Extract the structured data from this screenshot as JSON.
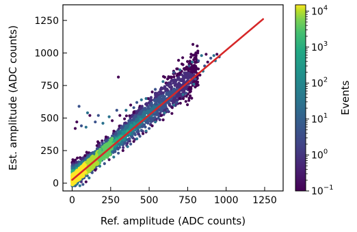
{
  "chart_data": {
    "type": "scatter",
    "title": "",
    "xlabel": "Ref. amplitude (ADC counts)",
    "ylabel": "Est. amplitude (ADC counts)",
    "xlim": [
      -60,
      1370
    ],
    "ylim": [
      -60,
      1370
    ],
    "xticks": [
      0,
      250,
      500,
      750,
      1000,
      1250
    ],
    "yticks": [
      0,
      250,
      500,
      750,
      1000,
      1250
    ],
    "grid": false,
    "colormap": "viridis",
    "colorbar": {
      "label": "Events",
      "scale": "log",
      "range": [
        0.1,
        15000
      ],
      "ticks": [
        {
          "value": 0.1,
          "base": "10",
          "exp": "−1"
        },
        {
          "value": 1,
          "base": "10",
          "exp": "0"
        },
        {
          "value": 10,
          "base": "10",
          "exp": "1"
        },
        {
          "value": 100,
          "base": "10",
          "exp": "2"
        },
        {
          "value": 1000,
          "base": "10",
          "exp": "3"
        },
        {
          "value": 10000,
          "base": "10",
          "exp": "4"
        }
      ]
    },
    "fit_line": {
      "x": [
        0,
        1240
      ],
      "y": [
        25,
        1260
      ],
      "color": "#d62728"
    },
    "outliers": [
      [
        300,
        815
      ],
      [
        45,
        590
      ],
      [
        100,
        540
      ],
      [
        115,
        520
      ],
      [
        170,
        520
      ],
      [
        240,
        510
      ],
      [
        30,
        470
      ],
      [
        150,
        470
      ],
      [
        90,
        430
      ],
      [
        20,
        420
      ],
      [
        60,
        440
      ],
      [
        200,
        460
      ],
      [
        260,
        480
      ],
      [
        290,
        560
      ],
      [
        350,
        560
      ],
      [
        380,
        600
      ],
      [
        420,
        620
      ],
      [
        450,
        640
      ],
      [
        310,
        520
      ],
      [
        400,
        580
      ],
      [
        480,
        650
      ],
      [
        520,
        700
      ],
      [
        540,
        720
      ],
      [
        590,
        780
      ],
      [
        620,
        800
      ],
      [
        660,
        850
      ],
      [
        700,
        870
      ],
      [
        720,
        910
      ],
      [
        760,
        900
      ],
      [
        780,
        930
      ],
      [
        800,
        960
      ],
      [
        820,
        940
      ],
      [
        840,
        980
      ],
      [
        870,
        990
      ],
      [
        900,
        960
      ],
      [
        920,
        980
      ],
      [
        940,
        990
      ],
      [
        955,
        970
      ],
      [
        930,
        940
      ],
      [
        880,
        930
      ],
      [
        860,
        900
      ],
      [
        850,
        860
      ],
      [
        830,
        830
      ],
      [
        800,
        800
      ],
      [
        790,
        760
      ],
      [
        760,
        720
      ],
      [
        740,
        690
      ],
      [
        720,
        680
      ],
      [
        700,
        650
      ],
      [
        680,
        620
      ],
      [
        660,
        600
      ],
      [
        650,
        580
      ],
      [
        620,
        560
      ],
      [
        600,
        540
      ],
      [
        580,
        520
      ],
      [
        560,
        500
      ],
      [
        540,
        470
      ],
      [
        520,
        440
      ],
      [
        500,
        420
      ],
      [
        480,
        400
      ],
      [
        460,
        380
      ],
      [
        440,
        360
      ],
      [
        420,
        340
      ],
      [
        400,
        320
      ],
      [
        380,
        300
      ],
      [
        360,
        280
      ],
      [
        330,
        250
      ],
      [
        300,
        230
      ],
      [
        270,
        200
      ],
      [
        240,
        180
      ],
      [
        210,
        150
      ],
      [
        180,
        130
      ],
      [
        150,
        100
      ],
      [
        130,
        80
      ],
      [
        110,
        40
      ],
      [
        90,
        10
      ],
      [
        70,
        -10
      ],
      [
        50,
        -20
      ]
    ],
    "colors": [
      "#440154",
      "#472d7b",
      "#3b528b",
      "#2c728e",
      "#21918c",
      "#28ae80",
      "#5ec962",
      "#addc30",
      "#fde725"
    ]
  }
}
